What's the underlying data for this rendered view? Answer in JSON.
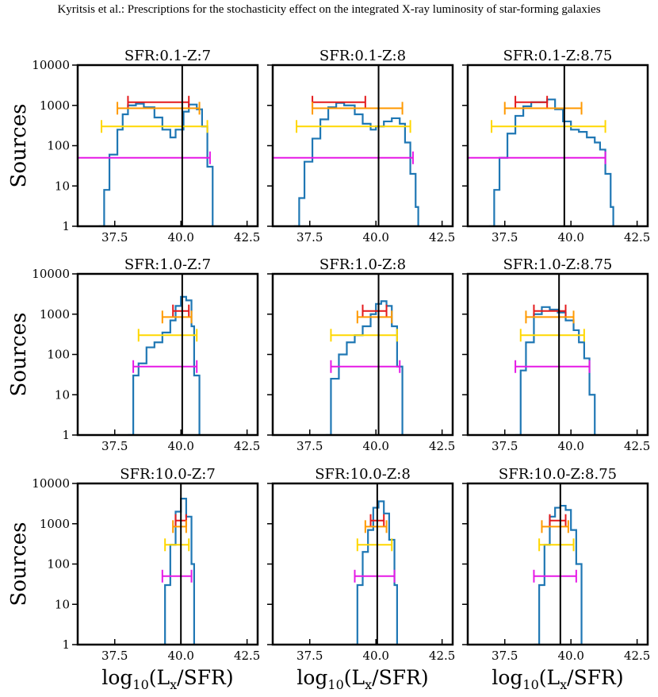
{
  "header": {
    "running_title": "Kyritsis et al.: Prescriptions for the stochasticity effect on the integrated X-ray luminosity of star-forming galaxies"
  },
  "colors": {
    "histogram": "#1f77b4",
    "median_line": "#000000",
    "bars": [
      "#e41a1c",
      "#ff9900",
      "#ffd700",
      "#e619e6"
    ]
  },
  "axes": {
    "ylabel": "Sources",
    "xlabel_prefix": "log",
    "xlabel_sub": "10",
    "xlabel_suffix": "(L",
    "xlabel_x_sub": "x",
    "xlabel_tail": "/SFR)",
    "x_ticks": [
      "37.5",
      "40.0",
      "42.5"
    ],
    "y_ticks": [
      "1",
      "10",
      "100",
      "1000",
      "10000"
    ],
    "xlim": [
      36.1,
      42.9
    ],
    "ylim": [
      1,
      10000
    ],
    "yscale": "log"
  },
  "chart_data": [
    {
      "type": "histogram",
      "title": "SFR:0.1-Z:7",
      "median": 40.05,
      "hist": {
        "x": [
          36.9,
          37.1,
          37.3,
          37.6,
          37.8,
          38.0,
          38.3,
          38.6,
          39.0,
          39.3,
          39.6,
          39.8,
          40.1,
          40.3,
          40.6,
          40.8,
          41.0,
          41.2
        ],
        "y": [
          1,
          8,
          60,
          250,
          600,
          1000,
          1100,
          900,
          500,
          250,
          160,
          250,
          700,
          1050,
          800,
          300,
          30,
          1
        ]
      },
      "bars": [
        {
          "y": 1200,
          "xmin": 38.0,
          "xmax": 40.3
        },
        {
          "y": 850,
          "xmin": 37.6,
          "xmax": 40.7
        },
        {
          "y": 300,
          "xmin": 37.0,
          "xmax": 41.0
        },
        {
          "y": 50,
          "xmin": 36.1,
          "xmax": 41.1
        }
      ]
    },
    {
      "type": "histogram",
      "title": "SFR:0.1-Z:8",
      "median": 40.1,
      "hist": {
        "x": [
          36.9,
          37.1,
          37.3,
          37.6,
          37.9,
          38.2,
          38.5,
          38.8,
          39.2,
          39.5,
          39.8,
          40.0,
          40.3,
          40.6,
          40.9,
          41.1,
          41.3,
          41.5,
          41.6
        ],
        "y": [
          1,
          5,
          40,
          150,
          450,
          900,
          1150,
          1000,
          600,
          350,
          250,
          300,
          400,
          480,
          350,
          120,
          20,
          3,
          1
        ]
      },
      "bars": [
        {
          "y": 1200,
          "xmin": 37.6,
          "xmax": 39.6
        },
        {
          "y": 850,
          "xmin": 37.6,
          "xmax": 41.0
        },
        {
          "y": 300,
          "xmin": 37.0,
          "xmax": 41.3
        },
        {
          "y": 50,
          "xmin": 36.1,
          "xmax": 41.4
        }
      ]
    },
    {
      "type": "histogram",
      "title": "SFR:0.1-Z:8.75",
      "median": 39.75,
      "hist": {
        "x": [
          36.9,
          37.1,
          37.3,
          37.6,
          37.9,
          38.2,
          38.5,
          38.8,
          39.1,
          39.4,
          39.7,
          40.0,
          40.3,
          40.6,
          40.9,
          41.1,
          41.3,
          41.5,
          41.6
        ],
        "y": [
          1,
          8,
          50,
          200,
          550,
          950,
          1200,
          1200,
          1400,
          800,
          400,
          250,
          220,
          160,
          120,
          80,
          20,
          3,
          1
        ]
      },
      "bars": [
        {
          "y": 1200,
          "xmin": 37.9,
          "xmax": 39.1
        },
        {
          "y": 850,
          "xmin": 37.5,
          "xmax": 40.4
        },
        {
          "y": 300,
          "xmin": 37.0,
          "xmax": 41.3
        },
        {
          "y": 50,
          "xmin": 36.1,
          "xmax": 41.3
        }
      ]
    },
    {
      "type": "histogram",
      "title": "SFR:1.0-Z:7",
      "median": 40.05,
      "hist": {
        "x": [
          38.0,
          38.2,
          38.4,
          38.7,
          39.0,
          39.3,
          39.6,
          39.8,
          40.0,
          40.2,
          40.4,
          40.5,
          40.7
        ],
        "y": [
          1,
          30,
          60,
          150,
          200,
          350,
          700,
          1600,
          2700,
          2200,
          500,
          30,
          1
        ]
      },
      "bars": [
        {
          "y": 1200,
          "xmin": 39.7,
          "xmax": 40.3
        },
        {
          "y": 850,
          "xmin": 39.3,
          "xmax": 40.4
        },
        {
          "y": 300,
          "xmin": 38.4,
          "xmax": 40.6
        },
        {
          "y": 50,
          "xmin": 38.2,
          "xmax": 40.6
        }
      ]
    },
    {
      "type": "histogram",
      "title": "SFR:1.0-Z:8",
      "median": 40.1,
      "hist": {
        "x": [
          38.1,
          38.3,
          38.6,
          38.9,
          39.2,
          39.5,
          39.8,
          40.0,
          40.2,
          40.4,
          40.6,
          40.8,
          41.0
        ],
        "y": [
          1,
          25,
          100,
          200,
          300,
          500,
          1000,
          1800,
          2100,
          1600,
          500,
          50,
          1
        ]
      },
      "bars": [
        {
          "y": 1200,
          "xmin": 39.5,
          "xmax": 40.4
        },
        {
          "y": 850,
          "xmin": 39.3,
          "xmax": 40.6
        },
        {
          "y": 300,
          "xmin": 38.3,
          "xmax": 40.8
        },
        {
          "y": 50,
          "xmin": 38.3,
          "xmax": 40.9
        }
      ]
    },
    {
      "type": "histogram",
      "title": "SFR:1.0-Z:8.75",
      "median": 39.55,
      "hist": {
        "x": [
          37.9,
          38.1,
          38.3,
          38.6,
          38.9,
          39.2,
          39.5,
          39.8,
          40.1,
          40.3,
          40.5,
          40.7,
          40.9
        ],
        "y": [
          1,
          40,
          200,
          1000,
          1500,
          1300,
          1100,
          700,
          400,
          200,
          80,
          10,
          1
        ]
      },
      "bars": [
        {
          "y": 1200,
          "xmin": 38.6,
          "xmax": 39.8
        },
        {
          "y": 850,
          "xmin": 38.3,
          "xmax": 40.1
        },
        {
          "y": 300,
          "xmin": 38.1,
          "xmax": 40.5
        },
        {
          "y": 50,
          "xmin": 37.9,
          "xmax": 40.7
        }
      ]
    },
    {
      "type": "histogram",
      "title": "SFR:10.0-Z:7",
      "median": 40.0,
      "hist": {
        "x": [
          39.2,
          39.4,
          39.6,
          39.8,
          40.0,
          40.2,
          40.4,
          40.5
        ],
        "y": [
          1,
          30,
          300,
          2000,
          4200,
          1500,
          100,
          1
        ]
      },
      "bars": [
        {
          "y": 1200,
          "xmin": 39.8,
          "xmax": 40.2
        },
        {
          "y": 850,
          "xmin": 39.7,
          "xmax": 40.2
        },
        {
          "y": 300,
          "xmin": 39.4,
          "xmax": 40.3
        },
        {
          "y": 50,
          "xmin": 39.3,
          "xmax": 40.4
        }
      ]
    },
    {
      "type": "histogram",
      "title": "SFR:10.0-Z:8",
      "median": 40.05,
      "hist": {
        "x": [
          39.1,
          39.3,
          39.5,
          39.7,
          39.9,
          40.1,
          40.3,
          40.5,
          40.7,
          40.8
        ],
        "y": [
          1,
          30,
          200,
          700,
          2500,
          3600,
          1800,
          400,
          30,
          1
        ]
      },
      "bars": [
        {
          "y": 1200,
          "xmin": 39.8,
          "xmax": 40.3
        },
        {
          "y": 850,
          "xmin": 39.6,
          "xmax": 40.4
        },
        {
          "y": 300,
          "xmin": 39.3,
          "xmax": 40.6
        },
        {
          "y": 50,
          "xmin": 39.2,
          "xmax": 40.7
        }
      ]
    },
    {
      "type": "histogram",
      "title": "SFR:10.0-Z:8.75",
      "median": 39.6,
      "hist": {
        "x": [
          38.6,
          38.8,
          39.0,
          39.2,
          39.4,
          39.6,
          39.8,
          40.0,
          40.2,
          40.4
        ],
        "y": [
          1,
          30,
          300,
          1500,
          2500,
          2800,
          2200,
          700,
          100,
          1
        ]
      },
      "bars": [
        {
          "y": 1200,
          "xmin": 39.2,
          "xmax": 39.8
        },
        {
          "y": 850,
          "xmin": 38.9,
          "xmax": 39.9
        },
        {
          "y": 300,
          "xmin": 38.8,
          "xmax": 40.1
        },
        {
          "y": 50,
          "xmin": 38.6,
          "xmax": 40.2
        }
      ]
    }
  ]
}
